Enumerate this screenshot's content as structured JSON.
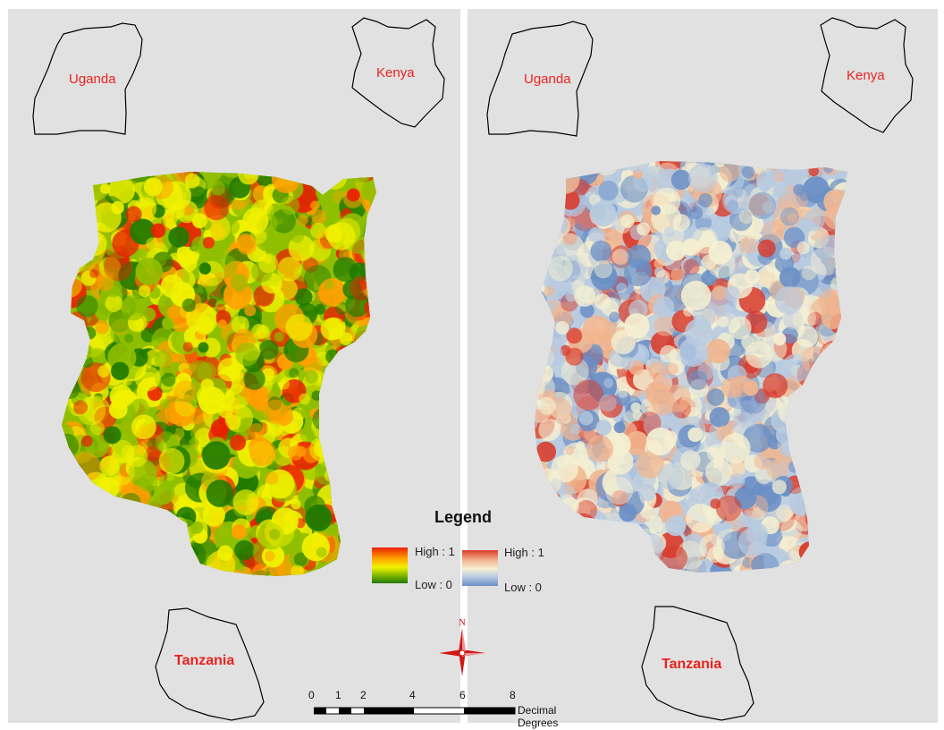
{
  "panels": {
    "left": {
      "countries": {
        "uganda": "Uganda",
        "kenya": "Kenya",
        "tanzania": "Tanzania"
      },
      "colormap": [
        "#1f7a00",
        "#8fbf00",
        "#f2f200",
        "#ff9f00",
        "#e82000"
      ]
    },
    "right": {
      "countries": {
        "uganda": "Uganda",
        "kenya": "Kenya",
        "tanzania": "Tanzania"
      },
      "colormap": [
        "#6a8fc6",
        "#b9cbe0",
        "#f4efd2",
        "#f2b58e",
        "#d93b2b"
      ]
    }
  },
  "legend": {
    "title": "Legend",
    "entries": [
      {
        "high": "High : 1",
        "low": "Low : 0"
      },
      {
        "high": "High : 1",
        "low": "Low : 0"
      }
    ]
  },
  "north_arrow": {
    "label": "N"
  },
  "scale_bar": {
    "ticks": [
      "0",
      "1",
      "2",
      "4",
      "6",
      "8"
    ],
    "units": "Decimal Degrees"
  }
}
